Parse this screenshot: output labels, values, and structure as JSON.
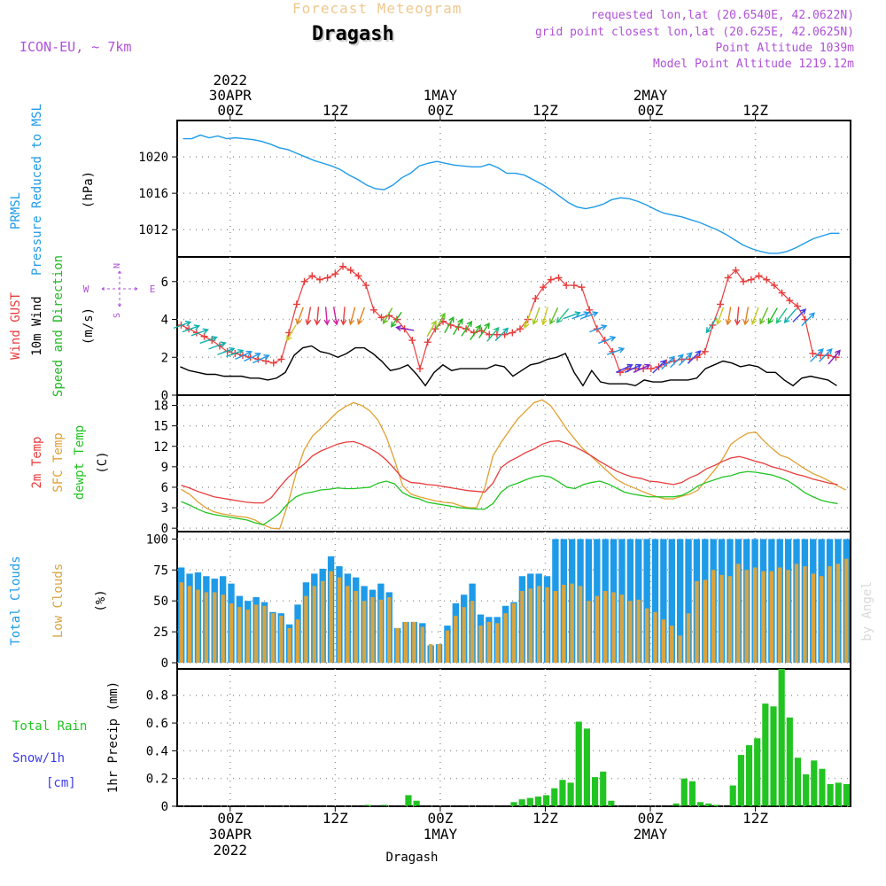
{
  "header": {
    "title": "Forecast Meteogram",
    "location": "Dragash",
    "model": "ICON-EU, ~ 7km",
    "requested": "requested lon,lat (20.6540E, 42.0622N)",
    "gridpoint": "grid point closest lon,lat (20.625E, 42.0625N)",
    "point_alt": "Point Altitude 1039m",
    "model_alt": "Model Point Altitude 1219.12m"
  },
  "colors": {
    "pressure": "#1e9be8",
    "gust": "#e83c3c",
    "wind": "#000000",
    "direction": "#22b822",
    "temp2m": "#e83c3c",
    "sfc": "#e0a030",
    "dewpt": "#22c422",
    "total_cloud": "#1e9be8",
    "low_cloud": "#d8a440",
    "rain": "#22c422",
    "snow": "#3c3ce8",
    "meta": "#b050d8",
    "title": "#f0c890"
  },
  "time_axis": {
    "top_labels": [
      {
        "t": 6,
        "lines": [
          "2022",
          "30APR",
          "00Z"
        ]
      },
      {
        "t": 18,
        "lines": [
          "12Z"
        ]
      },
      {
        "t": 30,
        "lines": [
          "1MAY",
          "00Z"
        ]
      },
      {
        "t": 42,
        "lines": [
          "12Z"
        ]
      },
      {
        "t": 54,
        "lines": [
          "2MAY",
          "00Z"
        ]
      },
      {
        "t": 66,
        "lines": [
          "12Z"
        ]
      }
    ],
    "bottom_labels": [
      {
        "t": 6,
        "lines": [
          "00Z",
          "30APR",
          "2022"
        ]
      },
      {
        "t": 18,
        "lines": [
          "12Z"
        ]
      },
      {
        "t": 30,
        "lines": [
          "00Z",
          "1MAY"
        ]
      },
      {
        "t": 42,
        "lines": [
          "12Z"
        ]
      },
      {
        "t": 54,
        "lines": [
          "00Z",
          "2MAY"
        ]
      },
      {
        "t": 66,
        "lines": [
          "12Z"
        ]
      }
    ],
    "bottom_caption": "Dragash",
    "watermark": "by Angel"
  },
  "chart_data": [
    {
      "type": "line",
      "id": "pressure",
      "labels": {
        "l1": "PRMSL",
        "l2": "Pressure Reduced to MSL",
        "unit": "(hPa)"
      },
      "ylim": [
        1009,
        1024
      ],
      "yticks": [
        1012,
        1016,
        1020
      ],
      "series": [
        {
          "values": [
            1022.0,
            1022.0,
            1022.4,
            1022.1,
            1022.3,
            1022.0,
            1022.1,
            1022.0,
            1021.9,
            1021.7,
            1021.4,
            1021.0,
            1020.8,
            1020.4,
            1020.0,
            1019.6,
            1019.3,
            1019.0,
            1018.6,
            1018.0,
            1017.5,
            1016.9,
            1016.5,
            1016.4,
            1016.9,
            1017.7,
            1018.2,
            1019.0,
            1019.3,
            1019.5,
            1019.3,
            1019.1,
            1019.0,
            1018.9,
            1018.9,
            1019.2,
            1018.8,
            1018.2,
            1018.2,
            1018.0,
            1017.5,
            1017.0,
            1016.4,
            1015.7,
            1015.0,
            1014.5,
            1014.3,
            1014.5,
            1014.8,
            1015.3,
            1015.5,
            1015.4,
            1015.1,
            1014.7,
            1014.2,
            1013.8,
            1013.6,
            1013.4,
            1013.1,
            1012.8,
            1012.4,
            1012.0,
            1011.5,
            1010.9,
            1010.3,
            1009.9,
            1009.6,
            1009.4,
            1009.4,
            1009.6,
            1010.0,
            1010.5,
            1011.0,
            1011.3,
            1011.6,
            1011.6
          ]
        }
      ]
    },
    {
      "type": "line",
      "id": "wind",
      "labels": {
        "l1": "Wind GUST",
        "l2": "10m Wind",
        "l3": "Speed and Direction",
        "unit": "(m/s)"
      },
      "ylim": [
        0,
        7.3
      ],
      "yticks": [
        0,
        2,
        4,
        6
      ],
      "compass": [
        "N",
        "W",
        "E",
        "S"
      ],
      "gust": [
        3.7,
        3.5,
        3.3,
        3.1,
        2.9,
        2.6,
        2.3,
        2.2,
        2.1,
        2.0,
        1.9,
        1.8,
        1.7,
        1.9,
        3.3,
        4.8,
        6.0,
        6.3,
        6.1,
        6.2,
        6.4,
        6.8,
        6.6,
        6.3,
        5.8,
        4.5,
        4.1,
        4.2,
        4.0,
        3.5,
        2.9,
        1.4,
        2.8,
        3.5,
        3.9,
        3.7,
        3.6,
        3.5,
        3.3,
        3.4,
        3.2,
        3.2,
        3.2,
        3.3,
        3.5,
        4.0,
        5.1,
        5.7,
        6.1,
        6.2,
        5.8,
        5.8,
        5.7,
        4.5,
        3.5,
        2.9,
        2.3,
        1.2,
        1.4,
        1.4,
        1.4,
        1.4,
        1.5,
        1.7,
        1.8,
        1.9,
        1.9,
        2.0,
        2.3,
        3.7,
        4.8,
        6.2,
        6.6,
        6.0,
        6.1,
        6.3,
        6.1,
        5.8,
        5.4,
        5.0,
        4.7,
        4.0,
        2.2,
        2.1,
        2.1,
        2.0
      ],
      "wind": [
        1.5,
        1.3,
        1.2,
        1.1,
        1.1,
        1.0,
        1.0,
        1.0,
        0.9,
        0.9,
        0.8,
        0.9,
        1.2,
        2.1,
        2.5,
        2.6,
        2.3,
        2.2,
        2.0,
        2.2,
        2.5,
        2.5,
        2.2,
        1.8,
        1.3,
        1.4,
        1.6,
        1.1,
        0.5,
        1.2,
        1.6,
        1.3,
        1.4,
        1.4,
        1.4,
        1.4,
        1.6,
        1.5,
        1.0,
        1.3,
        1.6,
        1.7,
        1.9,
        2.0,
        2.2,
        1.2,
        0.5,
        1.3,
        0.7,
        0.6,
        0.6,
        0.6,
        0.5,
        0.8,
        0.7,
        0.7,
        0.8,
        0.8,
        0.8,
        0.9,
        1.4,
        1.6,
        1.8,
        1.7,
        1.5,
        1.6,
        1.5,
        1.2,
        1.2,
        0.8,
        0.5,
        0.9,
        1.0,
        0.9,
        0.8,
        0.5
      ],
      "arrows": [
        {
          "t": 0.5,
          "dir": 250,
          "col": "#10b0b0"
        },
        {
          "t": 1.5,
          "dir": 250,
          "col": "#10b0b0"
        },
        {
          "t": 2.5,
          "dir": 250,
          "col": "#10b0b0"
        },
        {
          "t": 3.5,
          "dir": 250,
          "col": "#10b0b0"
        },
        {
          "t": 4.5,
          "dir": 250,
          "col": "#10b0b0"
        },
        {
          "t": 5.5,
          "dir": 250,
          "col": "#10b0b0"
        },
        {
          "t": 6.5,
          "dir": 250,
          "col": "#10b0b0"
        },
        {
          "t": 7.5,
          "dir": 245,
          "col": "#1e9be8"
        },
        {
          "t": 8.5,
          "dir": 245,
          "col": "#1e9be8"
        },
        {
          "t": 9.5,
          "dir": 245,
          "col": "#1e9be8"
        },
        {
          "t": 13.0,
          "dir": 30,
          "col": "#c8c820"
        },
        {
          "t": 14.0,
          "dir": 20,
          "col": "#e08020"
        },
        {
          "t": 15.0,
          "dir": 10,
          "col": "#e83c3c"
        },
        {
          "t": 16.0,
          "dir": 5,
          "col": "#e83c3c"
        },
        {
          "t": 17.0,
          "dir": 355,
          "col": "#d020a0"
        },
        {
          "t": 18.0,
          "dir": 350,
          "col": "#d020a0"
        },
        {
          "t": 19.0,
          "dir": 5,
          "col": "#e83c3c"
        },
        {
          "t": 20.0,
          "dir": 15,
          "col": "#e08020"
        },
        {
          "t": 21.0,
          "dir": 20,
          "col": "#e08020"
        },
        {
          "t": 24.0,
          "dir": 30,
          "col": "#60c020"
        },
        {
          "t": 25.0,
          "dir": 35,
          "col": "#22b822"
        },
        {
          "t": 26.0,
          "dir": 100,
          "col": "#8020c0"
        },
        {
          "t": 29.0,
          "dir": 210,
          "col": "#a0c820"
        },
        {
          "t": 30.0,
          "dir": 210,
          "col": "#60c020"
        },
        {
          "t": 31.0,
          "dir": 210,
          "col": "#22b822"
        },
        {
          "t": 32.0,
          "dir": 210,
          "col": "#22b822"
        },
        {
          "t": 33.0,
          "dir": 215,
          "col": "#22b822"
        },
        {
          "t": 34.0,
          "dir": 215,
          "col": "#22b822"
        },
        {
          "t": 35.0,
          "dir": 215,
          "col": "#22b822"
        },
        {
          "t": 36.0,
          "dir": 220,
          "col": "#20c080"
        },
        {
          "t": 37.0,
          "dir": 225,
          "col": "#10b0b0"
        },
        {
          "t": 40.0,
          "dir": 20,
          "col": "#c8c820"
        },
        {
          "t": 41.0,
          "dir": 20,
          "col": "#a0c820"
        },
        {
          "t": 42.0,
          "dir": 15,
          "col": "#c8c820"
        },
        {
          "t": 43.0,
          "dir": 25,
          "col": "#60c020"
        },
        {
          "t": 44.0,
          "dir": 40,
          "col": "#20c080"
        },
        {
          "t": 45.0,
          "dir": 250,
          "col": "#10b0b0"
        },
        {
          "t": 46.0,
          "dir": 250,
          "col": "#1e9be8"
        },
        {
          "t": 47.0,
          "dir": 250,
          "col": "#1e9be8"
        },
        {
          "t": 48.0,
          "dir": 250,
          "col": "#1e9be8"
        },
        {
          "t": 49.0,
          "dir": 250,
          "col": "#1e9be8"
        },
        {
          "t": 50.0,
          "dir": 250,
          "col": "#1e9be8"
        },
        {
          "t": 51.0,
          "dir": 245,
          "col": "#3c3ce8"
        },
        {
          "t": 52.0,
          "dir": 245,
          "col": "#3c3ce8"
        },
        {
          "t": 53.0,
          "dir": 245,
          "col": "#8020c0"
        },
        {
          "t": 55.0,
          "dir": 225,
          "col": "#3c3ce8"
        },
        {
          "t": 56.0,
          "dir": 225,
          "col": "#1e9be8"
        },
        {
          "t": 57.0,
          "dir": 225,
          "col": "#1e9be8"
        },
        {
          "t": 58.0,
          "dir": 225,
          "col": "#1e9be8"
        },
        {
          "t": 59.0,
          "dir": 225,
          "col": "#3c3ce8"
        },
        {
          "t": 61.0,
          "dir": 35,
          "col": "#10b0b0"
        },
        {
          "t": 62.0,
          "dir": 20,
          "col": "#c8c820"
        },
        {
          "t": 63.0,
          "dir": 10,
          "col": "#e08020"
        },
        {
          "t": 64.0,
          "dir": 5,
          "col": "#e83c3c"
        },
        {
          "t": 65.0,
          "dir": 10,
          "col": "#e08020"
        },
        {
          "t": 66.0,
          "dir": 20,
          "col": "#c8c820"
        },
        {
          "t": 67.0,
          "dir": 25,
          "col": "#60c020"
        },
        {
          "t": 68.0,
          "dir": 30,
          "col": "#22b822"
        },
        {
          "t": 69.0,
          "dir": 35,
          "col": "#20c080"
        },
        {
          "t": 70.0,
          "dir": 40,
          "col": "#10b0b0"
        },
        {
          "t": 71.0,
          "dir": 225,
          "col": "#3c3ce8"
        },
        {
          "t": 72.0,
          "dir": 225,
          "col": "#1e9be8"
        },
        {
          "t": 73.0,
          "dir": 225,
          "col": "#1e9be8"
        },
        {
          "t": 74.0,
          "dir": 225,
          "col": "#1e9be8"
        },
        {
          "t": 75.0,
          "dir": 220,
          "col": "#8020c0"
        }
      ]
    },
    {
      "type": "line",
      "id": "temp",
      "labels": {
        "l1": "2m Temp",
        "l2": "SFC Temp",
        "l3": "dewpt Temp",
        "unit": "(C)"
      },
      "ylim": [
        -0.5,
        19.5
      ],
      "yticks": [
        0,
        3,
        6,
        9,
        12,
        15,
        18
      ],
      "temp2m": [
        6.3,
        5.9,
        5.4,
        5.0,
        4.6,
        4.4,
        4.2,
        4.0,
        3.8,
        3.7,
        3.7,
        4.5,
        6.0,
        7.4,
        8.5,
        9.4,
        10.6,
        11.3,
        11.8,
        12.3,
        12.6,
        12.7,
        12.3,
        11.7,
        11.0,
        10.0,
        8.7,
        7.3,
        6.7,
        6.6,
        6.4,
        6.3,
        6.1,
        5.9,
        5.7,
        5.5,
        5.4,
        5.3,
        6.6,
        8.9,
        9.8,
        10.4,
        11.1,
        11.6,
        12.3,
        12.7,
        12.8,
        12.4,
        11.9,
        11.3,
        10.6,
        9.8,
        9.1,
        8.4,
        7.9,
        7.5,
        7.3,
        6.9,
        6.8,
        6.6,
        6.4,
        6.7,
        7.4,
        7.9,
        8.7,
        9.2,
        9.8,
        10.3,
        10.5,
        10.2,
        9.8,
        9.5,
        9.0,
        8.7,
        8.3,
        7.9,
        7.6,
        7.2,
        6.9,
        6.6,
        6.4
      ],
      "sfc": [
        5.7,
        5.0,
        3.9,
        3.0,
        2.4,
        2.1,
        1.9,
        1.7,
        1.6,
        1.2,
        0.5,
        0.0,
        -0.1,
        3.5,
        8.0,
        11.5,
        13.5,
        14.6,
        15.8,
        17.0,
        17.8,
        18.4,
        18.0,
        17.2,
        15.8,
        13.4,
        10.0,
        6.2,
        5.0,
        4.6,
        4.3,
        4.0,
        3.8,
        3.7,
        3.3,
        3.0,
        3.0,
        5.9,
        10.6,
        12.6,
        14.3,
        16.0,
        17.2,
        18.4,
        18.8,
        18.0,
        16.3,
        14.5,
        13.0,
        11.6,
        10.5,
        9.4,
        8.3,
        7.2,
        6.5,
        6.0,
        5.5,
        5.0,
        4.6,
        4.3,
        4.3,
        4.7,
        5.0,
        5.6,
        7.1,
        8.5,
        10.2,
        12.3,
        13.2,
        13.9,
        14.1,
        12.8,
        11.7,
        10.7,
        10.3,
        9.5,
        8.7,
        8.0,
        7.5,
        6.9,
        6.2,
        5.6
      ],
      "dewpt": [
        3.9,
        3.4,
        2.8,
        2.3,
        2.0,
        1.8,
        1.6,
        1.4,
        1.2,
        0.8,
        0.5,
        1.3,
        2.2,
        3.6,
        4.6,
        5.1,
        5.3,
        5.6,
        5.7,
        5.9,
        5.8,
        5.8,
        5.9,
        6.0,
        6.6,
        6.9,
        6.5,
        5.2,
        4.6,
        4.3,
        3.8,
        3.6,
        3.4,
        3.2,
        3.0,
        2.9,
        2.8,
        2.8,
        3.6,
        5.3,
        6.2,
        6.6,
        7.1,
        7.5,
        7.7,
        7.5,
        6.8,
        6.0,
        5.8,
        6.4,
        6.7,
        6.9,
        6.5,
        5.9,
        5.3,
        5.0,
        4.8,
        4.6,
        4.6,
        4.6,
        4.6,
        4.8,
        5.4,
        6.2,
        6.7,
        7.1,
        7.5,
        7.7,
        8.1,
        8.3,
        8.2,
        8.0,
        7.8,
        7.4,
        6.9,
        6.1,
        5.2,
        4.6,
        4.1,
        3.8,
        3.6
      ]
    },
    {
      "type": "bar",
      "id": "clouds",
      "labels": {
        "l1": "Total Clouds",
        "l2": "Low Clouds",
        "unit": "(%)"
      },
      "ylim": [
        -5,
        106
      ],
      "yticks": [
        0,
        25,
        50,
        75,
        100
      ],
      "total": [
        77,
        72,
        73,
        70,
        68,
        70,
        64,
        54,
        50,
        53,
        49,
        41,
        40,
        31,
        47,
        65,
        72,
        76,
        86,
        78,
        72,
        69,
        62,
        59,
        64,
        57,
        28,
        33,
        33,
        32,
        14,
        15,
        30,
        48,
        55,
        64,
        39,
        37,
        37,
        46,
        49,
        70,
        72,
        72,
        70,
        100,
        100,
        100,
        100,
        100,
        100,
        100,
        100,
        100,
        100,
        100,
        100,
        100,
        100,
        100,
        100,
        100,
        100,
        100,
        100,
        100,
        100,
        100,
        100,
        100,
        100,
        100,
        100,
        100,
        100,
        100,
        100,
        100,
        100,
        100,
        100
      ],
      "low": [
        65,
        62,
        59,
        57,
        57,
        55,
        48,
        45,
        43,
        47,
        46,
        40,
        38,
        28,
        35,
        54,
        62,
        66,
        74,
        69,
        62,
        58,
        50,
        53,
        51,
        53,
        28,
        33,
        33,
        29,
        15,
        15,
        26,
        38,
        45,
        50,
        30,
        33,
        32,
        40,
        48,
        58,
        60,
        62,
        61,
        58,
        63,
        64,
        62,
        50,
        54,
        58,
        57,
        55,
        50,
        51,
        44,
        41,
        35,
        30,
        22,
        40,
        66,
        67,
        75,
        71,
        70,
        80,
        75,
        77,
        74,
        74,
        77,
        75,
        80,
        78,
        72,
        70,
        78,
        80,
        84,
        80,
        75,
        80,
        76
      ]
    },
    {
      "type": "bar",
      "id": "precip",
      "labels": {
        "rain": "Total Rain",
        "snow": "Snow/1h",
        "snow_unit": "[cm]",
        "unit": "1hr Precip (mm)"
      },
      "ylim": [
        0,
        0.99
      ],
      "yticks": [
        0,
        0.2,
        0.4,
        0.6,
        0.8
      ],
      "rain": [
        0,
        0,
        0,
        0,
        0,
        0,
        0,
        0,
        0,
        0,
        0,
        0,
        0,
        0,
        0,
        0,
        0,
        0,
        0,
        0,
        0,
        0,
        0,
        0.01,
        0,
        0.01,
        0,
        0,
        0.08,
        0.04,
        0,
        0,
        0,
        0,
        0,
        0,
        0,
        0,
        0,
        0,
        0,
        0.03,
        0.05,
        0.06,
        0.07,
        0.08,
        0.13,
        0.19,
        0.17,
        0.61,
        0.56,
        0.21,
        0.25,
        0.04,
        0,
        0,
        0,
        0,
        0,
        0,
        0,
        0.02,
        0.2,
        0.18,
        0.03,
        0.02,
        0.01,
        0,
        0.15,
        0.37,
        0.44,
        0.49,
        0.74,
        0.72,
        0.99,
        0.64,
        0.35,
        0.23,
        0.33,
        0.27,
        0.16,
        0.17,
        0.16
      ]
    }
  ]
}
